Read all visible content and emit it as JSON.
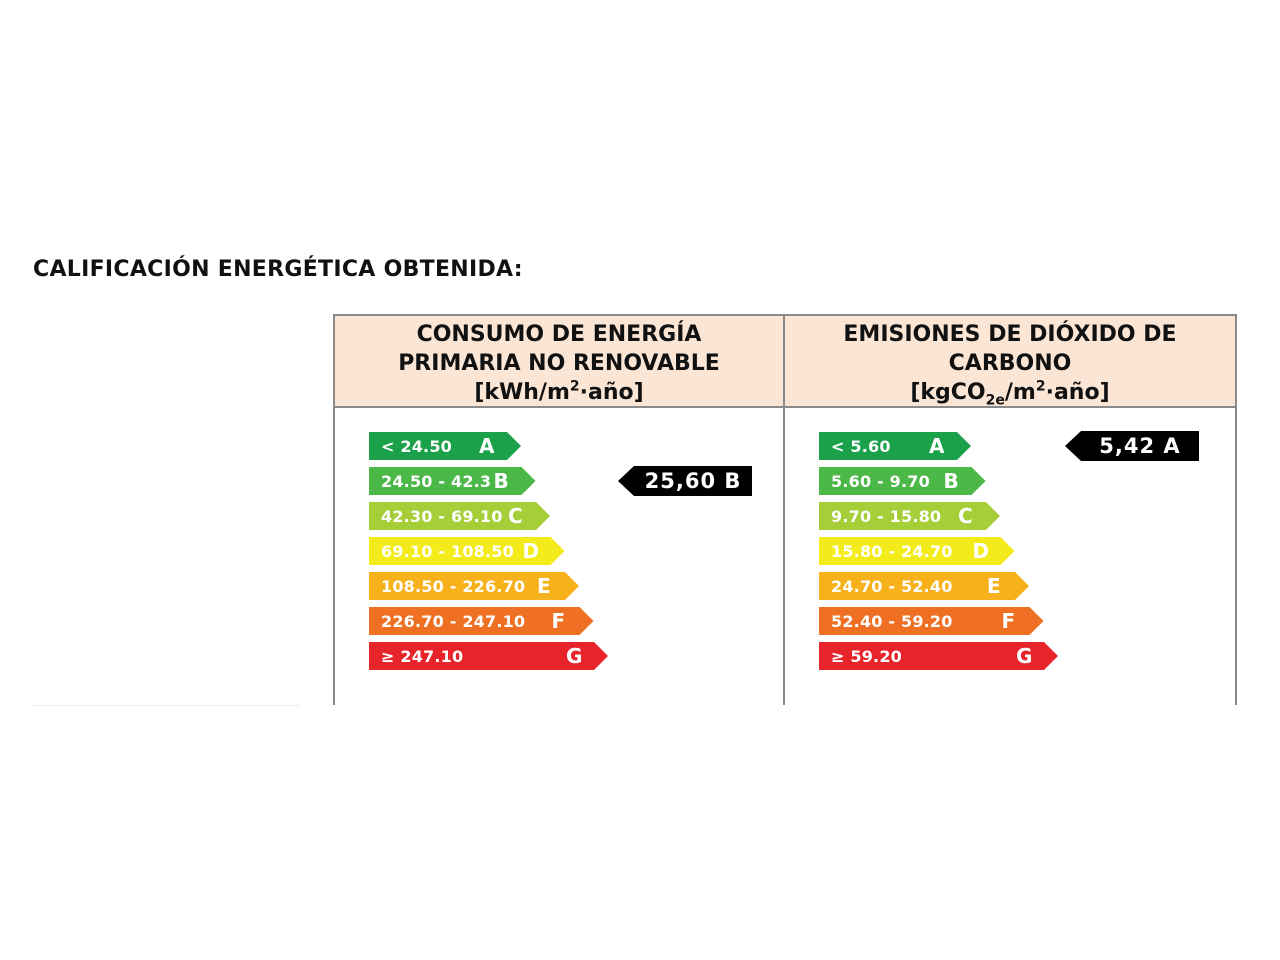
{
  "title": "CALIFICACIÓN ENERGÉTICA OBTENIDA:",
  "panels": [
    {
      "header_lines": [
        "CONSUMO DE ENERGÍA",
        "PRIMARIA NO RENOVABLE"
      ],
      "unit_parts": [
        "[kWh/m",
        "2",
        "·año]"
      ],
      "indicator": {
        "value": "25,60 B",
        "rating": "B"
      },
      "bars": [
        {
          "range": "< 24.50",
          "letter": "A",
          "color": "#1aa14a"
        },
        {
          "range": "24.50 - 42.3",
          "letter": "B",
          "color": "#4cb848"
        },
        {
          "range": "42.30 - 69.10",
          "letter": "C",
          "color": "#a6ce39"
        },
        {
          "range": "69.10 - 108.50",
          "letter": "D",
          "color": "#f4ec1a"
        },
        {
          "range": "108.50 - 226.70",
          "letter": "E",
          "color": "#f7b21b"
        },
        {
          "range": "226.70 - 247.10",
          "letter": "F",
          "color": "#ef7023"
        },
        {
          "range": "≥ 247.10",
          "letter": "G",
          "color": "#e7242a"
        }
      ]
    },
    {
      "header_lines": [
        "EMISIONES DE DIÓXIDO DE",
        "CARBONO"
      ],
      "unit_parts": [
        "[kgCO",
        "2e",
        "/m",
        "2",
        "·año]"
      ],
      "indicator": {
        "value": "5,42 A",
        "rating": "A"
      },
      "bars": [
        {
          "range": "< 5.60",
          "letter": "A",
          "color": "#1aa14a"
        },
        {
          "range": "5.60 - 9.70",
          "letter": "B",
          "color": "#4cb848"
        },
        {
          "range": "9.70 - 15.80",
          "letter": "C",
          "color": "#a6ce39"
        },
        {
          "range": "15.80 - 24.70",
          "letter": "D",
          "color": "#f4ec1a"
        },
        {
          "range": "24.70 - 52.40",
          "letter": "E",
          "color": "#f7b21b"
        },
        {
          "range": "52.40 - 59.20",
          "letter": "F",
          "color": "#ef7023"
        },
        {
          "range": "≥ 59.20",
          "letter": "G",
          "color": "#e7242a"
        }
      ]
    }
  ]
}
